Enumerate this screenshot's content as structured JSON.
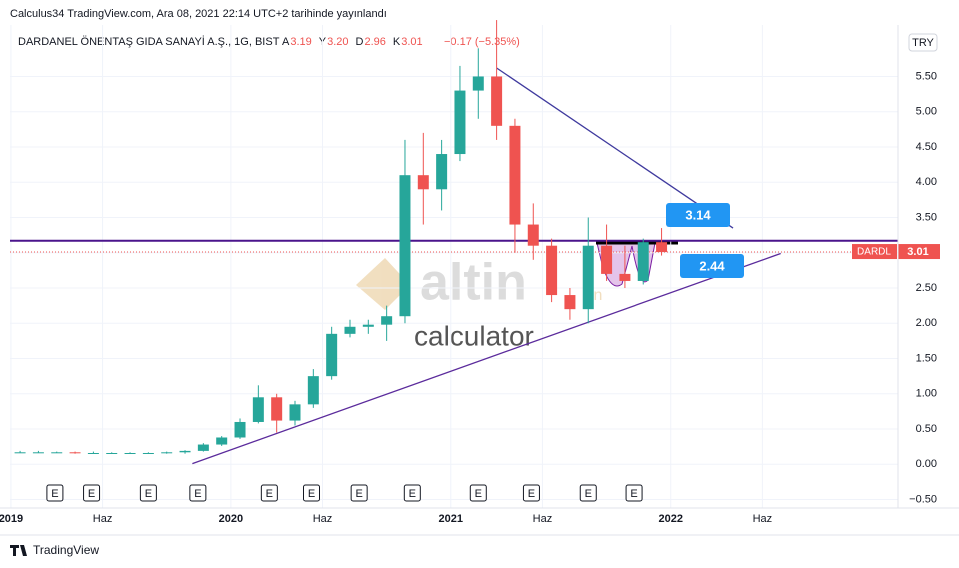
{
  "header": {
    "publisher": "Calculus34 TradingView.com, Ara 08, 2021 22:14 UTC+2 tarihinde yayınlandı",
    "symbol": "DARDANEL ÖNENTAŞ GIDA SANAYİ A.Ş., 1G, BIST",
    "ohlc": [
      {
        "key": "A",
        "value": "3.19"
      },
      {
        "key": "Y",
        "value": "3.20"
      },
      {
        "key": "D",
        "value": "2.96"
      },
      {
        "key": "K",
        "value": "3.01"
      }
    ],
    "change": "−0.17 (−5.35%)",
    "currency": "TRY"
  },
  "watermark": {
    "brand": "altin",
    "suffix": "in",
    "sub": "calculator"
  },
  "footer": "TradingView",
  "chart_data": {
    "type": "candlestick",
    "x": [
      0.5,
      1.5,
      2.5,
      3.5,
      4.5,
      5.5,
      6.5,
      7.5,
      8.5,
      9.5,
      10.5,
      11.5,
      12.5,
      13.5,
      14.5,
      15.5,
      16.5,
      17.5,
      18.5,
      19.5,
      20.5,
      21.5,
      22.5,
      23.5,
      24.5,
      25.5,
      26.5,
      27.5,
      28.5,
      29.5,
      30.5,
      31.5,
      32.5,
      33.5,
      34.5,
      35.5
    ],
    "open": [
      0.17,
      0.17,
      0.17,
      0.17,
      0.16,
      0.16,
      0.16,
      0.16,
      0.16,
      0.17,
      0.19,
      0.28,
      0.38,
      0.6,
      0.95,
      0.62,
      0.85,
      1.25,
      1.85,
      1.95,
      1.98,
      2.1,
      4.1,
      3.9,
      4.4,
      5.3,
      5.5,
      4.8,
      3.4,
      3.1,
      2.4,
      2.2,
      3.1,
      2.7,
      2.6,
      3.15
    ],
    "high": [
      0.19,
      0.19,
      0.18,
      0.18,
      0.18,
      0.17,
      0.17,
      0.17,
      0.18,
      0.2,
      0.3,
      0.4,
      0.65,
      1.12,
      1.0,
      0.9,
      1.35,
      1.95,
      2.05,
      2.05,
      2.25,
      4.6,
      4.7,
      4.6,
      5.65,
      5.9,
      6.3,
      4.9,
      3.7,
      3.2,
      2.5,
      3.5,
      3.4,
      3.1,
      3.2,
      3.35
    ],
    "low": [
      0.16,
      0.16,
      0.16,
      0.15,
      0.15,
      0.15,
      0.15,
      0.15,
      0.15,
      0.15,
      0.18,
      0.26,
      0.36,
      0.58,
      0.45,
      0.55,
      0.8,
      1.2,
      1.8,
      1.85,
      1.75,
      2.0,
      3.4,
      3.6,
      4.3,
      4.9,
      4.6,
      3.0,
      2.9,
      2.3,
      2.05,
      2.0,
      2.6,
      2.5,
      2.55,
      2.96
    ],
    "close": [
      0.17,
      0.17,
      0.17,
      0.16,
      0.16,
      0.16,
      0.16,
      0.16,
      0.17,
      0.19,
      0.28,
      0.38,
      0.6,
      0.95,
      0.62,
      0.85,
      1.25,
      1.85,
      1.95,
      1.98,
      2.1,
      4.1,
      3.9,
      4.4,
      5.3,
      5.5,
      4.8,
      3.4,
      3.1,
      2.4,
      2.2,
      3.1,
      2.7,
      2.6,
      3.15,
      3.01
    ],
    "up_color": "#26a69a",
    "down_color": "#ef5350",
    "xlim": [
      -0.05,
      48.4
    ],
    "xticks": [
      {
        "value": 0,
        "label": "2019"
      },
      {
        "value": 5,
        "label": "Haz"
      },
      {
        "value": 12,
        "label": "2020"
      },
      {
        "value": 17,
        "label": "Haz"
      },
      {
        "value": 24,
        "label": "2021"
      },
      {
        "value": 29,
        "label": "Haz"
      },
      {
        "value": 36,
        "label": "2022"
      },
      {
        "value": 41,
        "label": "Haz"
      }
    ],
    "ylim": [
      -0.62,
      6.23
    ],
    "yticks": [
      {
        "value": -0.5,
        "label": "−0.50"
      },
      {
        "value": 0,
        "label": "0.00"
      },
      {
        "value": 0.5,
        "label": "0.50"
      },
      {
        "value": 1,
        "label": "1.00"
      },
      {
        "value": 1.5,
        "label": "1.50"
      },
      {
        "value": 2,
        "label": "2.00"
      },
      {
        "value": 2.5,
        "label": "2.50"
      },
      {
        "value": 3,
        "label": "3.00"
      },
      {
        "value": 3.5,
        "label": "3.50"
      },
      {
        "value": 4,
        "label": "4.00"
      },
      {
        "value": 4.5,
        "label": "4.50"
      },
      {
        "value": 5,
        "label": "5.00"
      },
      {
        "value": 5.5,
        "label": "5.50"
      }
    ],
    "grid": true,
    "horizontal_line": {
      "value": 3.17,
      "color": "#4a148c"
    },
    "trendlines": [
      {
        "x": [
          26.5,
          39.4
        ],
        "y": [
          5.62,
          3.35
        ],
        "color": "#3f3a9e"
      },
      {
        "x": [
          9.9,
          42.0
        ],
        "y": [
          0.01,
          2.99
        ],
        "color": "#5b2b9c"
      }
    ],
    "last_price": {
      "label": "DARDL",
      "value": 3.01,
      "color": "#ef5350"
    },
    "callouts": [
      {
        "value": 3.14,
        "color": "#2196f3"
      },
      {
        "value": 2.44,
        "color": "#2196f3"
      }
    ],
    "events": {
      "label": "E",
      "x": [
        2.4,
        4.4,
        7.5,
        10.2,
        14.1,
        16.4,
        19.0,
        21.9,
        25.5,
        28.4,
        31.5,
        34.0
      ]
    }
  }
}
